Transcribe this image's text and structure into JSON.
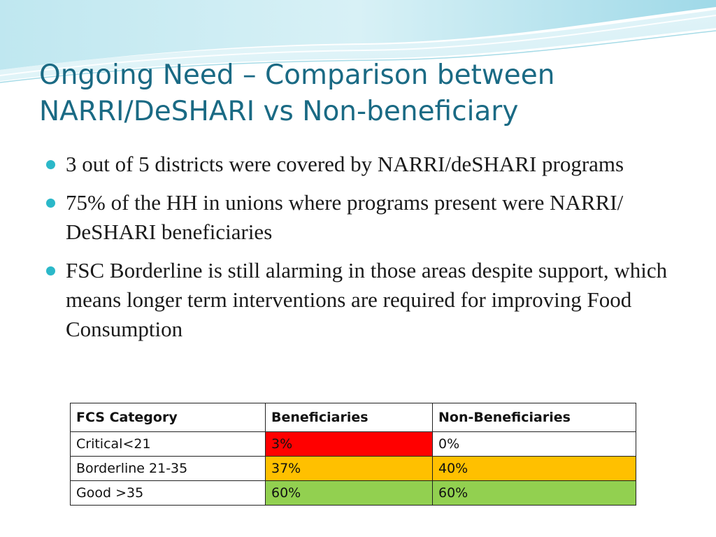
{
  "slide": {
    "title_lines": [
      "Ongoing Need – Comparison between",
      "NARRI/DeSHARI vs Non-beneficiary"
    ],
    "bullets": [
      "3 out of 5 districts were covered by NARRI/deSHARI programs",
      "75% of the HH in unions where programs present were NARRI/ DeSHARI beneficiaries",
      "FSC Borderline is still alarming in those areas despite support, which means longer term interventions are required for improving Food Consumption"
    ]
  },
  "table": {
    "headers": [
      "FCS Category",
      "Beneficiaries",
      "Non-Beneficiaries"
    ],
    "rows": [
      {
        "category": "Critical<21",
        "beneficiaries": "3%",
        "non_beneficiaries": "0%"
      },
      {
        "category": "Borderline 21-35",
        "beneficiaries": "37%",
        "non_beneficiaries": "40%"
      },
      {
        "category": "Good >35",
        "beneficiaries": "60%",
        "non_beneficiaries": "60%"
      }
    ],
    "colors": {
      "critical_beneficiaries": "#ff0000",
      "critical_non_beneficiaries": "#ffffff",
      "borderline": "#ffc000",
      "good": "#92d050"
    }
  },
  "theme": {
    "title_color": "#1a6a84",
    "bullet_color": "#2bb8c9"
  }
}
